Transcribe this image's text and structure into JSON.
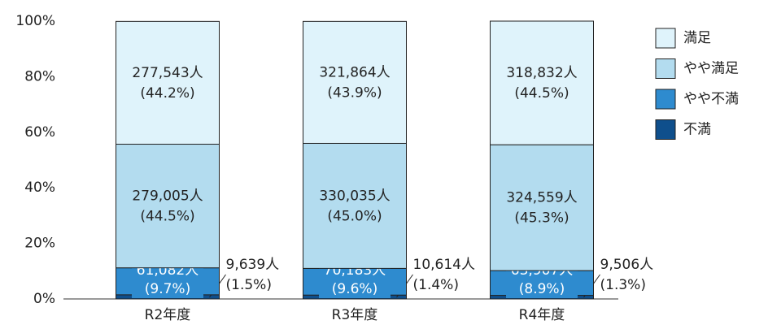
{
  "chart_data": {
    "type": "stacked_bar",
    "categories": [
      "R2年度",
      "R3年度",
      "R4年度"
    ],
    "series": [
      {
        "name": "不満",
        "color": "#0f4f8c",
        "values": [
          1.5,
          1.4,
          1.3
        ],
        "value_labels": [
          "(1.5%)",
          "(1.4%)",
          "(1.3%)"
        ],
        "count_labels": [
          "9,639人",
          "10,614人",
          "9,506人"
        ]
      },
      {
        "name": "やや不満",
        "color": "#2e8bcf",
        "values": [
          9.7,
          9.6,
          8.9
        ],
        "value_labels": [
          "(9.7%)",
          "(9.6%)",
          "(8.9%)"
        ],
        "count_labels": [
          "61,082人",
          "70,183人",
          "63,907人"
        ]
      },
      {
        "name": "やや満足",
        "color": "#b3dcef",
        "values": [
          44.5,
          45.0,
          45.3
        ],
        "value_labels": [
          "(44.5%)",
          "(45.0%)",
          "(45.3%)"
        ],
        "count_labels": [
          "279,005人",
          "330,035人",
          "324,559人"
        ]
      },
      {
        "name": "満足",
        "color": "#dff3fb",
        "values": [
          44.2,
          43.9,
          44.5
        ],
        "value_labels": [
          "(44.2%)",
          "(43.9%)",
          "(44.5%)"
        ],
        "count_labels": [
          "277,543人",
          "321,864人",
          "318,832人"
        ]
      }
    ],
    "ylim": [
      0,
      100
    ],
    "yticks": [
      {
        "value": 0,
        "label": "0%"
      },
      {
        "value": 20,
        "label": "20%"
      },
      {
        "value": 40,
        "label": "40%"
      },
      {
        "value": 60,
        "label": "60%"
      },
      {
        "value": 80,
        "label": "80%"
      },
      {
        "value": 100,
        "label": "100%"
      }
    ],
    "legend": "right"
  }
}
